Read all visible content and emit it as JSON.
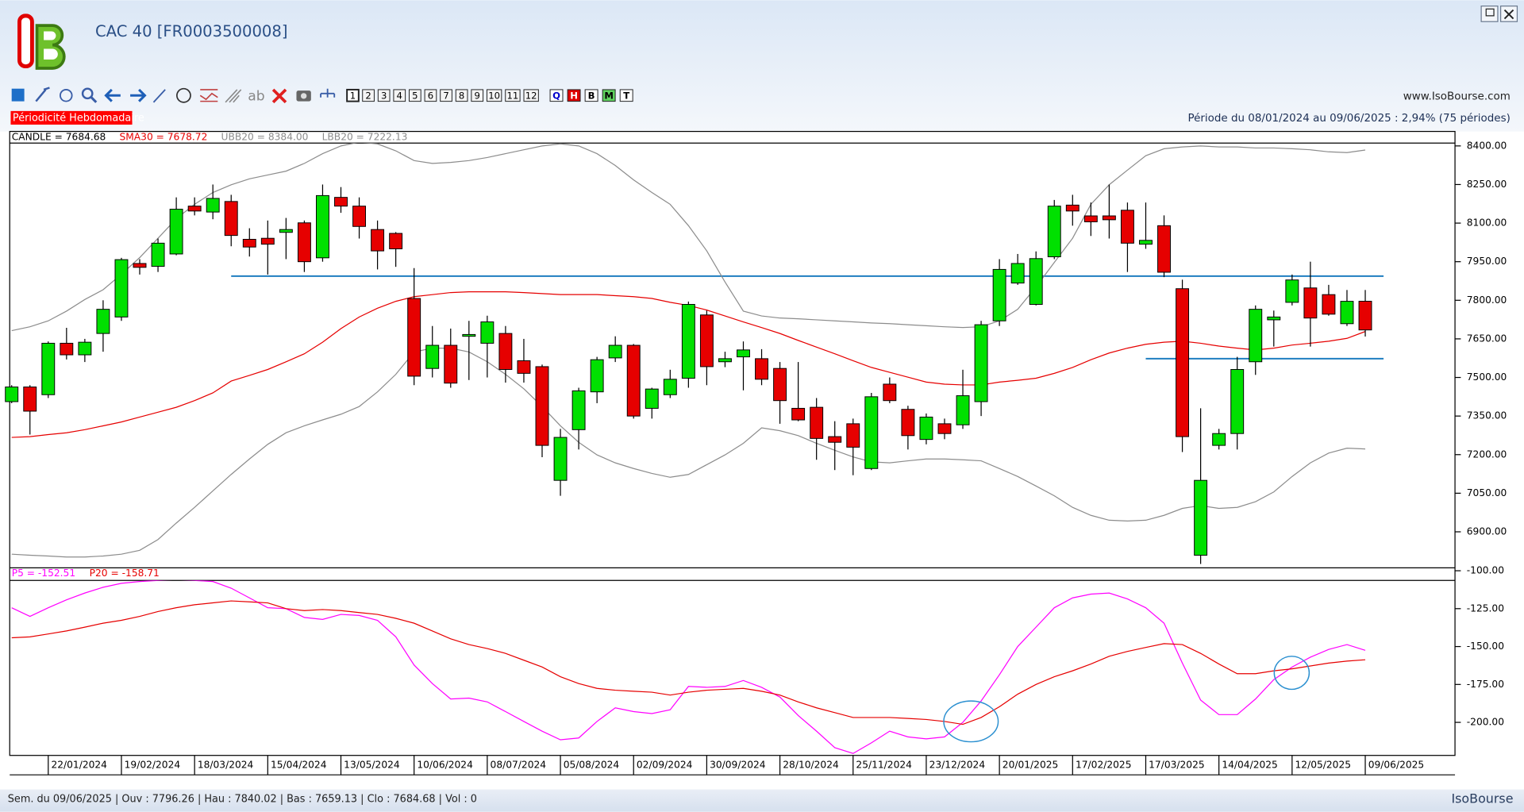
{
  "window": {
    "title": "CAC 40 [FR0003500008]",
    "site": "www.IsoBourse.com",
    "periodicity": "Périodicité Hebdomadaire",
    "period": "Période du 08/01/2024 au 09/06/2025 : 2,94% (75 périodes)",
    "status": "Sem. du 09/06/2025 | Ouv : 7796.26 | Hau : 7840.02 | Bas : 7659.13 | Clo : 7684.68 | Vol : 0",
    "brand": "IsoBourse"
  },
  "toolbar": {
    "text_tool": "ab",
    "periods": [
      "1",
      "2",
      "3",
      "4",
      "5",
      "6",
      "7",
      "8",
      "9",
      "10",
      "11",
      "12"
    ],
    "scales": [
      "Q",
      "H",
      "B",
      "M",
      "T"
    ]
  },
  "chart_data": [
    {
      "type": "candlestick",
      "candle_name": "CANDLE = 7684.68",
      "up_color": "#00e000",
      "down_color": "#e60000",
      "categories": [
        null,
        null,
        "22/01/2024",
        null,
        null,
        null,
        "19/02/2024",
        null,
        null,
        null,
        "18/03/2024",
        null,
        null,
        null,
        "15/04/2024",
        null,
        null,
        null,
        "13/05/2024",
        null,
        null,
        null,
        "10/06/2024",
        null,
        null,
        null,
        "08/07/2024",
        null,
        null,
        null,
        "05/08/2024",
        null,
        null,
        null,
        "02/09/2024",
        null,
        null,
        null,
        "30/09/2024",
        null,
        null,
        null,
        "28/10/2024",
        null,
        null,
        null,
        "25/11/2024",
        null,
        null,
        null,
        "23/12/2024",
        null,
        null,
        null,
        "20/01/2025",
        null,
        null,
        null,
        "17/02/2025",
        null,
        null,
        null,
        "17/03/2025",
        null,
        null,
        null,
        "14/04/2025",
        null,
        null,
        null,
        "12/05/2025",
        null,
        null,
        null,
        "09/06/2025"
      ],
      "open": [
        7406,
        7463,
        7433,
        7633,
        7588,
        7671,
        7735,
        7943,
        7932,
        7980,
        8166,
        8143,
        8184,
        8037,
        8041,
        8064,
        8101,
        7965,
        8200,
        8166,
        8075,
        8060,
        7807,
        7535,
        7625,
        7660,
        7633,
        7671,
        7565,
        7542,
        7100,
        7297,
        7444,
        7576,
        7625,
        7380,
        7433,
        7497,
        7743,
        7561,
        7580,
        7573,
        7535,
        7380,
        7384,
        7270,
        7320,
        7146,
        7474,
        7376,
        7259,
        7320,
        7316,
        7406,
        7720,
        7867,
        7784,
        7969,
        8170,
        8128,
        8128,
        8150,
        8018,
        8090,
        7845,
        6809,
        7236,
        7282,
        7561,
        7724,
        7792,
        7848,
        7822,
        7709,
        7796.26
      ],
      "high": [
        7470,
        7470,
        7640,
        7693,
        7650,
        7800,
        7965,
        7960,
        8040,
        8200,
        8200,
        8250,
        8210,
        8080,
        8110,
        8120,
        8110,
        8250,
        8240,
        8200,
        8110,
        8065,
        7925,
        7700,
        7690,
        7720,
        7740,
        7700,
        7650,
        7550,
        7300,
        7460,
        7580,
        7660,
        7630,
        7460,
        7530,
        7795,
        7760,
        7600,
        7640,
        7610,
        7560,
        7560,
        7420,
        7330,
        7340,
        7440,
        7500,
        7390,
        7360,
        7340,
        7530,
        7720,
        7960,
        7980,
        7990,
        8190,
        8210,
        8180,
        8250,
        8180,
        8180,
        8130,
        7880,
        7380,
        7300,
        7580,
        7780,
        7760,
        7900,
        7950,
        7860,
        7840,
        7840.02
      ],
      "low": [
        7400,
        7278,
        7420,
        7570,
        7560,
        7600,
        7720,
        7900,
        7910,
        7975,
        8130,
        8115,
        8010,
        7970,
        7900,
        7960,
        7910,
        7950,
        8140,
        8040,
        7920,
        7930,
        7470,
        7500,
        7460,
        7490,
        7500,
        7480,
        7480,
        7190,
        7040,
        7220,
        7400,
        7560,
        7340,
        7340,
        7420,
        7460,
        7470,
        7540,
        7450,
        7470,
        7320,
        7330,
        7180,
        7140,
        7120,
        7140,
        7400,
        7220,
        7240,
        7260,
        7300,
        7350,
        7700,
        7860,
        7780,
        7960,
        8090,
        8050,
        8040,
        7910,
        8000,
        7890,
        7210,
        6775,
        7220,
        7220,
        7510,
        7620,
        7780,
        7620,
        7740,
        7700,
        7659.13
      ],
      "close": [
        7463,
        7369,
        7633,
        7588,
        7637,
        7765,
        7958,
        7928,
        8022,
        8154,
        8147,
        8196,
        8052,
        8007,
        8018,
        8075,
        7950,
        8207,
        8166,
        8087,
        7992,
        8000,
        7505,
        7625,
        7478,
        7667,
        7716,
        7531,
        7516,
        7236,
        7267,
        7448,
        7569,
        7625,
        7350,
        7455,
        7493,
        7784,
        7542,
        7573,
        7607,
        7493,
        7410,
        7335,
        7263,
        7248,
        7229,
        7425,
        7410,
        7274,
        7346,
        7282,
        7429,
        7705,
        7920,
        7943,
        7962,
        8166,
        8147,
        8105,
        8113,
        8022,
        8033,
        7909,
        7270,
        7100,
        7282,
        7531,
        7765,
        7735,
        7879,
        7731,
        7746,
        7796,
        7684.68
      ],
      "series": [
        {
          "name": "SMA30 = 7678.72",
          "color": "#e60000",
          "values": [
            7267,
            7270,
            7278,
            7285,
            7297,
            7312,
            7327,
            7346,
            7365,
            7384,
            7410,
            7440,
            7486,
            7508,
            7531,
            7561,
            7592,
            7637,
            7690,
            7735,
            7769,
            7796,
            7814,
            7822,
            7830,
            7833,
            7833,
            7833,
            7830,
            7826,
            7822,
            7822,
            7822,
            7818,
            7814,
            7807,
            7792,
            7780,
            7762,
            7739,
            7716,
            7694,
            7671,
            7644,
            7618,
            7592,
            7565,
            7539,
            7520,
            7501,
            7482,
            7474,
            7471,
            7471,
            7482,
            7489,
            7497,
            7516,
            7539,
            7569,
            7595,
            7614,
            7629,
            7637,
            7641,
            7633,
            7622,
            7614,
            7607,
            7614,
            7626,
            7633,
            7641,
            7652,
            7678.72
          ]
        },
        {
          "name": "UBB20 = 8384.00",
          "color": "#8c8c8c",
          "values": [
            7682,
            7697,
            7720,
            7758,
            7803,
            7841,
            7901,
            7966,
            8041,
            8117,
            8173,
            8219,
            8249,
            8272,
            8287,
            8302,
            8332,
            8370,
            8400,
            8415,
            8408,
            8381,
            8343,
            8332,
            8336,
            8343,
            8355,
            8370,
            8385,
            8400,
            8408,
            8400,
            8370,
            8324,
            8268,
            8219,
            8173,
            8090,
            7992,
            7871,
            7758,
            7739,
            7731,
            7728,
            7724,
            7720,
            7716,
            7712,
            7709,
            7705,
            7701,
            7697,
            7694,
            7697,
            7720,
            7765,
            7852,
            7947,
            8041,
            8173,
            8249,
            8306,
            8362,
            8389,
            8396,
            8400,
            8396,
            8396,
            8392,
            8392,
            8389,
            8385,
            8377,
            8374,
            8384.0
          ]
        },
        {
          "name": "LBB20 = 7222.13",
          "color": "#8c8c8c",
          "values": [
            6813,
            6809,
            6806,
            6802,
            6802,
            6806,
            6813,
            6828,
            6870,
            6934,
            6995,
            7059,
            7123,
            7183,
            7240,
            7285,
            7312,
            7335,
            7357,
            7387,
            7444,
            7512,
            7599,
            7614,
            7614,
            7599,
            7561,
            7512,
            7456,
            7387,
            7312,
            7248,
            7199,
            7168,
            7146,
            7127,
            7112,
            7123,
            7161,
            7199,
            7244,
            7304,
            7293,
            7274,
            7244,
            7217,
            7191,
            7172,
            7168,
            7176,
            7183,
            7183,
            7180,
            7176,
            7146,
            7115,
            7078,
            7040,
            6995,
            6964,
            6945,
            6942,
            6945,
            6964,
            6991,
            7002,
            6991,
            6995,
            7017,
            7055,
            7115,
            7168,
            7206,
            7225,
            7222.13
          ]
        }
      ],
      "hlines": [
        {
          "value": 7894,
          "start": 12,
          "color": "#1f7ec0"
        },
        {
          "value": 7573,
          "start": 62,
          "color": "#1f7ec0"
        }
      ],
      "ylim": [
        6760,
        8411
      ],
      "yticks": [
        {
          "value": 6900,
          "label": "6900.00"
        },
        {
          "value": 7050,
          "label": "7050.00"
        },
        {
          "value": 7200,
          "label": "7200.00"
        },
        {
          "value": 7350,
          "label": "7350.00"
        },
        {
          "value": 7500,
          "label": "7500.00"
        },
        {
          "value": 7650,
          "label": "7650.00"
        },
        {
          "value": 7800,
          "label": "7800.00"
        },
        {
          "value": 7950,
          "label": "7950.00"
        },
        {
          "value": 8100,
          "label": "8100.00"
        },
        {
          "value": 8250,
          "label": "8250.00"
        },
        {
          "value": 8400,
          "label": "8400.00"
        }
      ]
    },
    {
      "type": "line",
      "series": [
        {
          "name": "P5 = -152.51",
          "color": "#ff00ff",
          "values": [
            -124.4,
            -130.1,
            -124.4,
            -119.2,
            -114.7,
            -110.9,
            -108.3,
            -107.1,
            -106.4,
            -105.8,
            -106.4,
            -107.1,
            -111.5,
            -117.9,
            -124.4,
            -125.0,
            -130.8,
            -132.1,
            -128.8,
            -129.5,
            -132.7,
            -143.6,
            -162.2,
            -174.4,
            -184.6,
            -184.0,
            -186.5,
            -192.9,
            -199.4,
            -205.8,
            -211.5,
            -210.3,
            -199.4,
            -190.4,
            -192.9,
            -194.2,
            -191.7,
            -176.3,
            -176.9,
            -176.3,
            -172.4,
            -176.9,
            -183.3,
            -195.5,
            -205.8,
            -216.7,
            -220.5,
            -213.5,
            -205.8,
            -209.6,
            -210.9,
            -209.6,
            -200.0,
            -185.9,
            -168.6,
            -150.0,
            -137.2,
            -124.4,
            -117.9,
            -115.4,
            -114.7,
            -118.6,
            -124.4,
            -134.6,
            -160.9,
            -185.3,
            -194.9,
            -194.9,
            -184.6,
            -171.8,
            -163.5,
            -157.0,
            -151.9,
            -148.7,
            -152.51
          ]
        },
        {
          "name": "P20 = -158.71",
          "color": "#e60000",
          "values": [
            -144.2,
            -143.6,
            -141.7,
            -139.7,
            -137.2,
            -134.6,
            -132.7,
            -130.1,
            -126.9,
            -124.4,
            -122.4,
            -121.2,
            -119.9,
            -120.5,
            -121.2,
            -125.0,
            -126.3,
            -125.6,
            -126.3,
            -127.6,
            -128.8,
            -131.4,
            -134.6,
            -139.7,
            -144.9,
            -148.7,
            -151.3,
            -154.5,
            -159.0,
            -163.5,
            -169.9,
            -174.4,
            -177.6,
            -178.8,
            -179.5,
            -180.1,
            -182.0,
            -180.1,
            -178.8,
            -178.2,
            -177.6,
            -179.5,
            -182.0,
            -186.5,
            -190.4,
            -193.6,
            -196.8,
            -196.8,
            -196.8,
            -197.4,
            -198.1,
            -199.4,
            -201.3,
            -196.8,
            -189.7,
            -181.4,
            -175.0,
            -169.9,
            -166.0,
            -161.5,
            -156.4,
            -153.2,
            -150.6,
            -148.1,
            -148.7,
            -154.5,
            -161.5,
            -167.9,
            -167.9,
            -166.0,
            -164.7,
            -162.8,
            -160.9,
            -159.6,
            -158.71
          ]
        }
      ],
      "ylim": [
        -221.8,
        -100
      ],
      "yticks": [
        {
          "value": -100,
          "label": "-100.00"
        },
        {
          "value": -125,
          "label": "-125.00"
        },
        {
          "value": -150,
          "label": "-150.00"
        },
        {
          "value": -175,
          "label": "-175.00"
        },
        {
          "value": -200,
          "label": "-200.00"
        }
      ]
    }
  ]
}
